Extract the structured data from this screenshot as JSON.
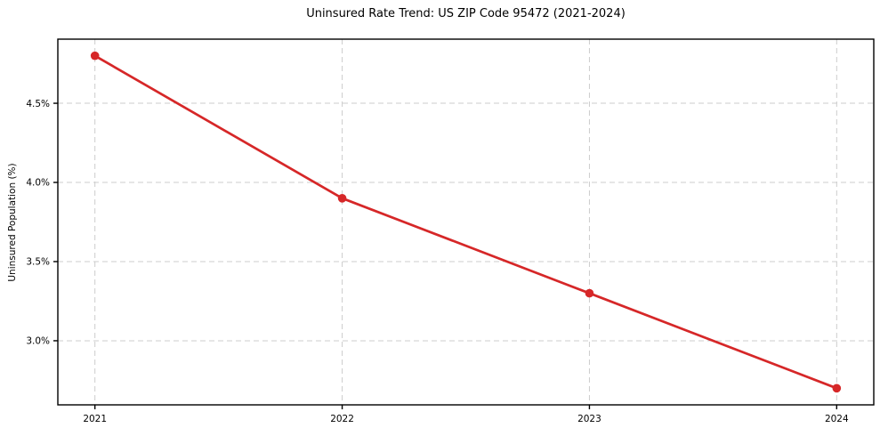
{
  "chart_data": {
    "type": "line",
    "title": "Uninsured Rate Trend: US ZIP Code 95472 (2021-2024)",
    "xlabel": "",
    "ylabel": "Uninsured Population (%)",
    "x": [
      2021,
      2022,
      2023,
      2024
    ],
    "x_tick_labels": [
      "2021",
      "2022",
      "2023",
      "2024"
    ],
    "values": [
      4.8,
      3.9,
      3.3,
      2.7
    ],
    "y_ticks": [
      3.0,
      3.5,
      4.0,
      4.5
    ],
    "y_tick_labels": [
      "3.0%",
      "3.5%",
      "4.0%",
      "4.5%"
    ],
    "xlim": [
      2020.85,
      2024.15
    ],
    "ylim": [
      2.595,
      4.905
    ],
    "grid": true,
    "grid_style": "dashed",
    "legend": "none",
    "marker": "circle",
    "colors": {
      "line": "#d62728",
      "marker": "#d62728",
      "grid": "#cccccc",
      "axis": "#000000",
      "text": "#000000",
      "background": "#ffffff"
    }
  }
}
